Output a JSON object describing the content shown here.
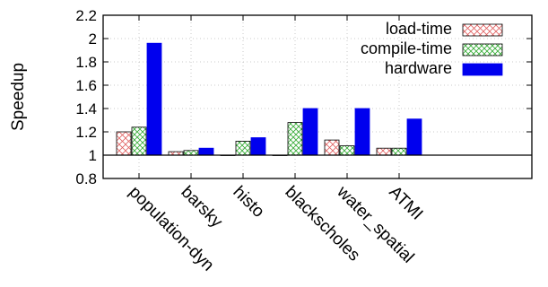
{
  "chart_data": {
    "type": "bar",
    "ylabel": "Speedup",
    "xlabel": "",
    "title": "",
    "ylim": [
      0.8,
      2.2
    ],
    "yticks": [
      "0.8",
      "1",
      "1.2",
      "1.4",
      "1.6",
      "1.8",
      "2",
      "2.2"
    ],
    "grid": true,
    "baseline": 1,
    "legend_position": "top-right",
    "categories": [
      "population-dyn",
      "barsky",
      "histo",
      "blackscholes",
      "water_spatial",
      "ATMI"
    ],
    "series": [
      {
        "name": "load-time",
        "color": "#e06060",
        "pattern": "crosshatch",
        "values": [
          1.2,
          1.03,
          1.0,
          1.0,
          1.13,
          1.06
        ]
      },
      {
        "name": "compile-time",
        "color": "#33aa33",
        "pattern": "crosshatch",
        "values": [
          1.24,
          1.04,
          1.12,
          1.28,
          1.08,
          1.06
        ]
      },
      {
        "name": "hardware",
        "color": "#0000ee",
        "pattern": "solid",
        "values": [
          1.96,
          1.06,
          1.15,
          1.4,
          1.4,
          1.31
        ]
      }
    ]
  }
}
